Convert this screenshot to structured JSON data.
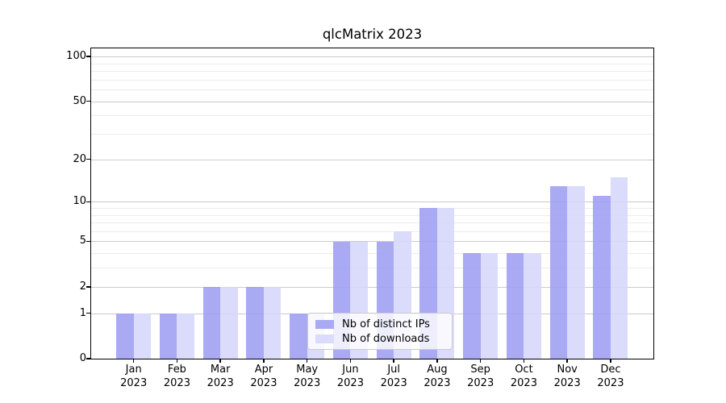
{
  "title": "qlcMatrix 2023",
  "chart_data": {
    "type": "bar",
    "title": "qlcMatrix 2023",
    "categories": [
      "Jan",
      "Feb",
      "Mar",
      "Apr",
      "May",
      "Jun",
      "Jul",
      "Aug",
      "Sep",
      "Oct",
      "Nov",
      "Dec"
    ],
    "category_year": "2023",
    "series": [
      {
        "name": "Nb of distinct IPs",
        "color": "rgba(157,157,243,0.88)",
        "color_hex": "#a8a8f5",
        "values": [
          1,
          1,
          2,
          2,
          1,
          5,
          5,
          9,
          4,
          4,
          13,
          11
        ]
      },
      {
        "name": "Nb of downloads",
        "color": "rgba(214,214,250,0.88)",
        "color_hex": "#dbdbfa",
        "values": [
          1,
          1,
          2,
          2,
          1,
          5,
          6,
          9,
          4,
          4,
          13,
          15
        ]
      }
    ],
    "xlabel": "",
    "ylabel": "",
    "yscale": "log1p",
    "yticks": [
      0,
      1,
      2,
      5,
      10,
      20,
      50,
      100
    ],
    "minor_gridlines": [
      3,
      4,
      6,
      7,
      8,
      9,
      30,
      40,
      60,
      70,
      80,
      90
    ],
    "ylim": [
      0,
      114
    ],
    "grid": true,
    "legend_position": "lower center"
  },
  "colors": {
    "background": "#ffffff",
    "major_grid": "#cbcbcb",
    "minor_grid": "#ececec",
    "axis": "#000000",
    "legend_border": "#cccccc"
  }
}
